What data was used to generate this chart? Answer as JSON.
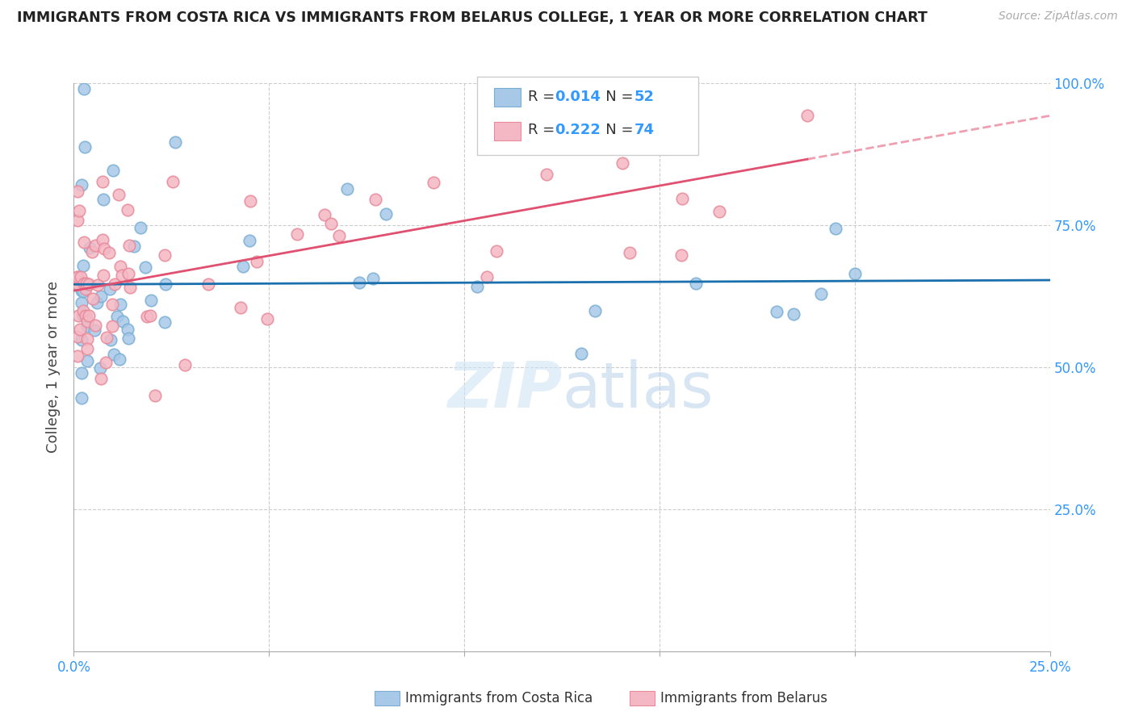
{
  "title": "IMMIGRANTS FROM COSTA RICA VS IMMIGRANTS FROM BELARUS COLLEGE, 1 YEAR OR MORE CORRELATION CHART",
  "source": "Source: ZipAtlas.com",
  "ylabel": "College, 1 year or more",
  "xlim": [
    0.0,
    0.25
  ],
  "ylim": [
    0.0,
    1.0
  ],
  "blue_color": "#a8c8e8",
  "blue_edge_color": "#7aafd4",
  "pink_color": "#f4b8c4",
  "pink_edge_color": "#e88a9a",
  "blue_line_color": "#1a6fad",
  "pink_line_color": "#e05070",
  "legend_R_blue": "0.014",
  "legend_N_blue": "52",
  "legend_R_pink": "0.222",
  "legend_N_pink": "74",
  "watermark_zip": "ZIP",
  "watermark_atlas": "atlas",
  "accent_color": "#3399ff",
  "grid_color": "#cccccc",
  "text_color": "#444444"
}
